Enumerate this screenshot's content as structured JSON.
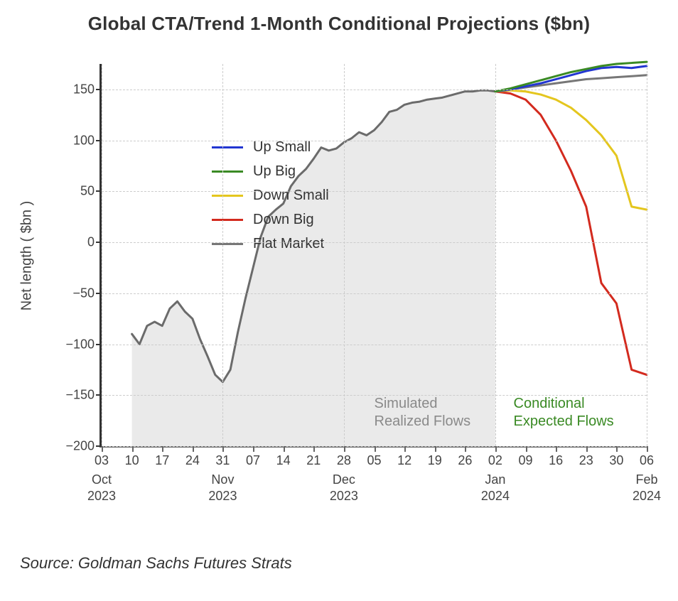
{
  "chart": {
    "type": "line",
    "title": "Global CTA/Trend 1-Month Conditional Projections ($bn)",
    "title_fontsize": 26,
    "title_weight": 600,
    "y_axis_title": "Net length ( $bn )",
    "y_axis_title_fontsize": 20,
    "ylim": [
      -200,
      175
    ],
    "ytick_step": 50,
    "y_ticks": [
      -200,
      -150,
      -100,
      -50,
      0,
      50,
      100,
      150
    ],
    "y_tick_labels": [
      "−200",
      "−150",
      "−100",
      "−50",
      "0",
      "50",
      "100",
      "150"
    ],
    "grid_color": "#cccccc",
    "grid_style": "dashed",
    "axis_line_color": "#333333",
    "background_color": "#ffffff",
    "fill_color": "#e6e6e6",
    "fill_opacity": 0.85,
    "realized_line_color": "#6b6b6b",
    "realized_line_width": 3,
    "projection_line_width": 3,
    "x_index_range": [
      0,
      18
    ],
    "x_day_labels": [
      "03",
      "10",
      "17",
      "24",
      "31",
      "07",
      "14",
      "21",
      "28",
      "05",
      "12",
      "19",
      "26",
      "02",
      "09",
      "16",
      "23",
      "30",
      "06"
    ],
    "x_month_labels": [
      {
        "idx": 0,
        "month": "Oct",
        "year": "2023"
      },
      {
        "idx": 4,
        "month": "Nov",
        "year": "2023"
      },
      {
        "idx": 8,
        "month": "Dec",
        "year": "2023"
      },
      {
        "idx": 13,
        "month": "Jan",
        "year": "2024"
      },
      {
        "idx": 18,
        "month": "Feb",
        "year": "2024"
      }
    ],
    "realized_start_idx": 1,
    "realized_end_idx": 13,
    "realized_values": [
      -90,
      -100,
      -82,
      -78,
      -82,
      -65,
      -58,
      -68,
      -75,
      -95,
      -112,
      -130,
      -137,
      -125,
      -88,
      -55,
      -25,
      5,
      25,
      32,
      38,
      55,
      65,
      72,
      82,
      93,
      90,
      92,
      98,
      102,
      108,
      105,
      110,
      118,
      128,
      130,
      135,
      137,
      138,
      140,
      141,
      142,
      144,
      146,
      148,
      148,
      149,
      149,
      148
    ],
    "projections": {
      "up_small": {
        "color": "#2236d1",
        "values": [
          148,
          150,
          153,
          156,
          160,
          164,
          168,
          171,
          172,
          171,
          173
        ]
      },
      "up_big": {
        "color": "#3a8a24",
        "values": [
          148,
          151,
          155,
          159,
          163,
          167,
          170,
          173,
          175,
          176,
          177
        ]
      },
      "down_small": {
        "color": "#e4c61e",
        "values": [
          148,
          149,
          148,
          145,
          140,
          132,
          120,
          105,
          85,
          35,
          32
        ]
      },
      "down_big": {
        "color": "#d32a1e",
        "values": [
          148,
          146,
          140,
          125,
          100,
          70,
          35,
          -40,
          -60,
          -125,
          -130
        ]
      },
      "flat": {
        "color": "#777777",
        "values": [
          148,
          150,
          152,
          154,
          156,
          158,
          160,
          161,
          162,
          163,
          164
        ]
      }
    },
    "legend": {
      "order": [
        "up_small",
        "up_big",
        "down_small",
        "down_big",
        "flat"
      ],
      "labels": {
        "up_small": "Up Small",
        "up_big": "Up Big",
        "down_small": "Down Small",
        "down_big": "Down Big",
        "flat": "Flat Market"
      },
      "fontsize": 20
    },
    "annotations": {
      "simulated": {
        "line1": "Simulated",
        "line2": "Realized Flows",
        "color": "#8a8a8a",
        "x_idx": 9.0,
        "y_val": -150
      },
      "conditional": {
        "line1": "Conditional",
        "line2": "Expected Flows",
        "color": "#3a8a24",
        "x_idx": 13.6,
        "y_val": -150
      }
    },
    "source": "Source: Goldman Sachs Futures Strats",
    "source_fontsize": 22
  }
}
